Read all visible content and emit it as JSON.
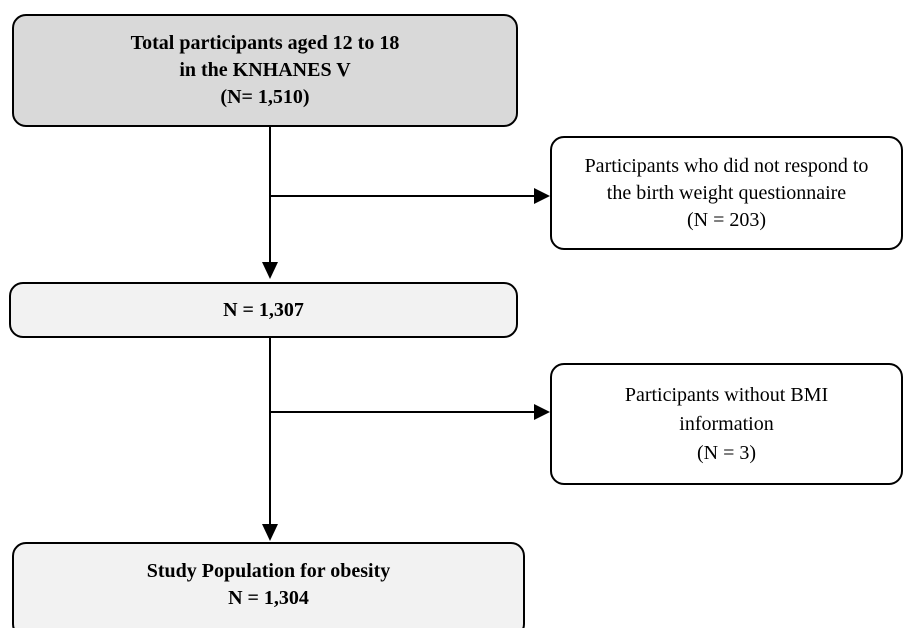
{
  "colors": {
    "box_primary_fill": "#d9d9d9",
    "box_light_fill": "#f2f2f2",
    "box_white_fill": "#ffffff",
    "stroke": "#000000"
  },
  "boxes": {
    "total": {
      "lines": [
        "Total participants aged 12 to 18",
        "in the KNHANES V",
        "(N= 1,510)"
      ]
    },
    "excluded_birth_weight": {
      "lines": [
        "Participants who did not respond to",
        "the birth weight questionnaire",
        "(N = 203)"
      ]
    },
    "after_first_exclusion": {
      "lines": [
        "N = 1,307"
      ]
    },
    "excluded_bmi": {
      "lines": [
        "Participants without BMI",
        "information",
        "(N = 3)"
      ]
    },
    "study_population": {
      "lines": [
        "Study Population for obesity",
        "N = 1,304"
      ]
    }
  }
}
